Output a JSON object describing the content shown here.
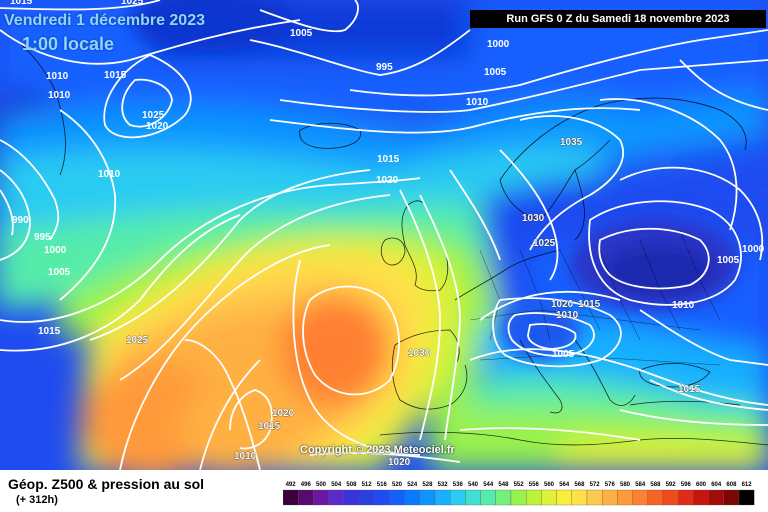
{
  "header": {
    "date_text": "Vendredi 1 décembre 2023",
    "time_text": "1:00 locale",
    "run_text": "Run GFS 0 Z du Samedi 18 novembre 2023"
  },
  "footer": {
    "title": "Géop. Z500 & pression au sol",
    "subtitle": "(+ 312h)",
    "copyright": "Copyright © 2023 Meteociel.fr"
  },
  "legend": {
    "values": [
      "492",
      "496",
      "500",
      "504",
      "508",
      "512",
      "516",
      "520",
      "524",
      "528",
      "532",
      "536",
      "540",
      "544",
      "548",
      "552",
      "556",
      "560",
      "564",
      "568",
      "572",
      "576",
      "580",
      "584",
      "588",
      "592",
      "596",
      "600",
      "604",
      "608",
      "612"
    ],
    "colors": [
      "#3b003b",
      "#5a0a6e",
      "#6b17a3",
      "#5a2acc",
      "#3a33d8",
      "#2a3fe0",
      "#1f4cf0",
      "#1460ff",
      "#0a7bff",
      "#0f94ff",
      "#19b0ff",
      "#2ccbf2",
      "#3fe0cf",
      "#55ecaa",
      "#73f07c",
      "#98f24c",
      "#bdf23a",
      "#e0f238",
      "#f7ef3a",
      "#ffe04a",
      "#ffc94d",
      "#ffb043",
      "#ff9a3a",
      "#ff8031",
      "#f66425",
      "#ee4a1e",
      "#e02b15",
      "#c8140f",
      "#a30a0a",
      "#7a0606",
      "#000000"
    ]
  },
  "isobar_labels": [
    {
      "text": "1015"
    },
    {
      "text": "1025"
    },
    {
      "text": "1005"
    },
    {
      "text": "1000"
    },
    {
      "text": "995"
    },
    {
      "text": "1005"
    },
    {
      "text": "1010"
    },
    {
      "text": "1010"
    },
    {
      "text": "1010"
    },
    {
      "text": "1015"
    },
    {
      "text": "1025"
    },
    {
      "text": "1020"
    },
    {
      "text": "1015"
    },
    {
      "text": "1020"
    },
    {
      "text": "1035"
    },
    {
      "text": "1010"
    },
    {
      "text": "990"
    },
    {
      "text": "995"
    },
    {
      "text": "1000"
    },
    {
      "text": "1005"
    },
    {
      "text": "1030"
    },
    {
      "text": "1025"
    },
    {
      "text": "1000"
    },
    {
      "text": "1005"
    },
    {
      "text": "1015"
    },
    {
      "text": "1025"
    },
    {
      "text": "1020"
    },
    {
      "text": "1015"
    },
    {
      "text": "1010"
    },
    {
      "text": "1010"
    },
    {
      "text": "1005"
    },
    {
      "text": "1030"
    },
    {
      "text": "1020"
    },
    {
      "text": "1015"
    },
    {
      "text": "1010"
    },
    {
      "text": "1020"
    },
    {
      "text": "1015"
    }
  ]
}
